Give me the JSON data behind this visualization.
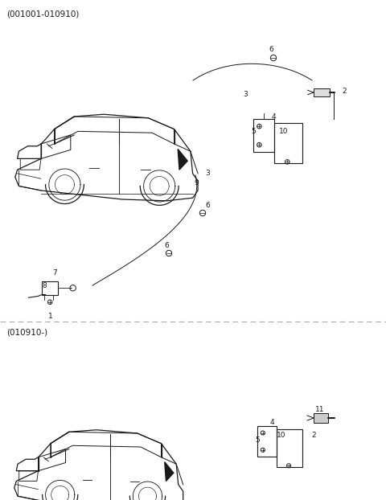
{
  "title_top": "(001001-010910)",
  "title_bottom": "(010910-)",
  "bg_color": "#ffffff",
  "line_color": "#1a1a1a",
  "divider_color": "#aaaaaa",
  "fig_width": 4.8,
  "fig_height": 6.22,
  "dpi": 100,
  "label_fontsize": 6.5,
  "title_fontsize": 7.5
}
